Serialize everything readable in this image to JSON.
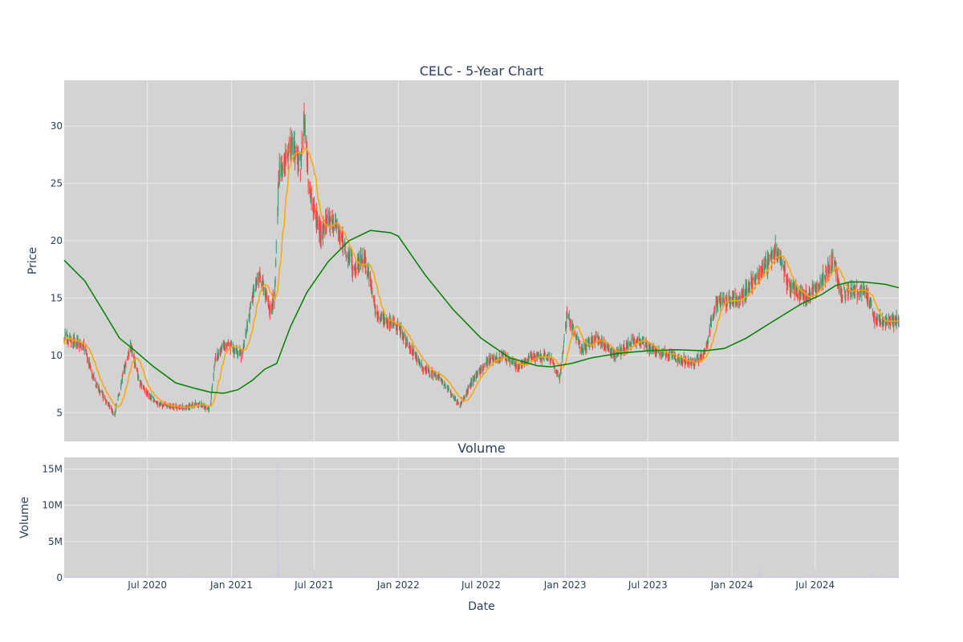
{
  "colors": {
    "plot_bg": "#d3d3d3",
    "grid": "#ebebeb",
    "up": "#3d9970",
    "down": "#ff4136",
    "ma_short": "#ffa500",
    "ma_long": "#008000",
    "volume": "#c8c8e6",
    "text": "#2a3f5f"
  },
  "chart_data": [
    {
      "type": "candlestick",
      "title": "CELC - 5-Year Chart",
      "xlabel": "",
      "ylabel": "Price",
      "xlim": [
        "2020-01-01",
        "2024-12-31"
      ],
      "ylim": [
        2.5,
        34
      ],
      "yticks": [
        5,
        10,
        15,
        20,
        25,
        30
      ],
      "grid": true,
      "series": [
        {
          "kind": "ohlc",
          "anchors": [
            [
              "2020-01-01",
              11.5
            ],
            [
              "2020-02-10",
              11.0
            ],
            [
              "2020-03-10",
              7.5
            ],
            [
              "2020-04-20",
              4.8
            ],
            [
              "2020-05-10",
              8.5
            ],
            [
              "2020-05-25",
              11.0
            ],
            [
              "2020-06-15",
              7.5
            ],
            [
              "2020-07-20",
              5.8
            ],
            [
              "2020-09-15",
              5.4
            ],
            [
              "2020-10-20",
              5.8
            ],
            [
              "2020-11-15",
              5.3
            ],
            [
              "2020-11-25",
              9.5
            ],
            [
              "2020-12-20",
              11.0
            ],
            [
              "2021-01-25",
              10.0
            ],
            [
              "2021-02-15",
              15.0
            ],
            [
              "2021-03-05",
              17.0
            ],
            [
              "2021-03-25",
              14.0
            ],
            [
              "2021-04-05",
              15.0
            ],
            [
              "2021-04-15",
              26.0
            ],
            [
              "2021-05-10",
              28.5
            ],
            [
              "2021-06-01",
              26.5
            ],
            [
              "2021-06-10",
              31.0
            ],
            [
              "2021-06-20",
              24.5
            ],
            [
              "2021-07-15",
              20.5
            ],
            [
              "2021-08-10",
              22.0
            ],
            [
              "2021-09-01",
              20.0
            ],
            [
              "2021-09-25",
              17.5
            ],
            [
              "2021-10-20",
              18.5
            ],
            [
              "2021-11-15",
              13.5
            ],
            [
              "2022-01-01",
              12.5
            ],
            [
              "2022-02-20",
              9.0
            ],
            [
              "2022-04-01",
              8.0
            ],
            [
              "2022-05-15",
              5.6
            ],
            [
              "2022-06-15",
              8.0
            ],
            [
              "2022-07-15",
              9.5
            ],
            [
              "2022-08-20",
              10.0
            ],
            [
              "2022-09-20",
              9.0
            ],
            [
              "2022-10-20",
              10.0
            ],
            [
              "2022-12-01",
              9.8
            ],
            [
              "2022-12-20",
              8.0
            ],
            [
              "2023-01-05",
              13.5
            ],
            [
              "2023-02-05",
              10.5
            ],
            [
              "2023-03-10",
              11.5
            ],
            [
              "2023-04-20",
              10.0
            ],
            [
              "2023-06-10",
              11.5
            ],
            [
              "2023-07-10",
              10.5
            ],
            [
              "2023-08-20",
              10.0
            ],
            [
              "2023-10-10",
              9.2
            ],
            [
              "2023-11-05",
              10.5
            ],
            [
              "2023-11-25",
              14.5
            ],
            [
              "2024-01-20",
              15.0
            ],
            [
              "2024-02-25",
              17.0
            ],
            [
              "2024-03-20",
              18.0
            ],
            [
              "2024-04-05",
              19.5
            ],
            [
              "2024-05-05",
              16.0
            ],
            [
              "2024-06-15",
              15.0
            ],
            [
              "2024-07-15",
              16.5
            ],
            [
              "2024-08-10",
              18.5
            ],
            [
              "2024-08-25",
              15.5
            ],
            [
              "2024-09-25",
              15.5
            ],
            [
              "2024-10-20",
              15.5
            ],
            [
              "2024-11-10",
              13.0
            ],
            [
              "2024-12-31",
              13.0
            ]
          ],
          "noise": 0.055
        },
        {
          "kind": "moving_average",
          "window": 20
        },
        {
          "kind": "moving_average",
          "window": 200,
          "points": [
            [
              "2020-01-01",
              18.3
            ],
            [
              "2020-02-15",
              16.5
            ],
            [
              "2020-04-01",
              13.5
            ],
            [
              "2020-05-01",
              11.5
            ],
            [
              "2020-06-01",
              10.5
            ],
            [
              "2020-07-15",
              9.0
            ],
            [
              "2020-09-01",
              7.6
            ],
            [
              "2020-10-15",
              7.1
            ],
            [
              "2020-11-15",
              6.8
            ],
            [
              "2020-12-15",
              6.7
            ],
            [
              "2021-01-15",
              7.0
            ],
            [
              "2021-02-15",
              7.8
            ],
            [
              "2021-03-15",
              8.8
            ],
            [
              "2021-04-10",
              9.3
            ],
            [
              "2021-05-10",
              12.5
            ],
            [
              "2021-06-15",
              15.5
            ],
            [
              "2021-08-01",
              18.2
            ],
            [
              "2021-09-15",
              20.0
            ],
            [
              "2021-11-01",
              20.9
            ],
            [
              "2021-12-15",
              20.7
            ],
            [
              "2022-01-01",
              20.4
            ],
            [
              "2022-03-01",
              17.0
            ],
            [
              "2022-05-01",
              14.0
            ],
            [
              "2022-07-01",
              11.5
            ],
            [
              "2022-09-01",
              9.8
            ],
            [
              "2022-11-01",
              9.1
            ],
            [
              "2022-12-01",
              9.0
            ],
            [
              "2023-01-15",
              9.3
            ],
            [
              "2023-03-01",
              9.8
            ],
            [
              "2023-05-01",
              10.2
            ],
            [
              "2023-07-01",
              10.4
            ],
            [
              "2023-09-01",
              10.5
            ],
            [
              "2023-11-01",
              10.4
            ],
            [
              "2023-12-15",
              10.6
            ],
            [
              "2024-02-01",
              11.5
            ],
            [
              "2024-04-01",
              13.0
            ],
            [
              "2024-06-01",
              14.5
            ],
            [
              "2024-07-15",
              15.3
            ],
            [
              "2024-08-15",
              16.1
            ],
            [
              "2024-09-15",
              16.4
            ],
            [
              "2024-10-15",
              16.4
            ],
            [
              "2024-12-01",
              16.2
            ],
            [
              "2024-12-31",
              15.9
            ]
          ]
        }
      ]
    },
    {
      "type": "bar",
      "title": "Volume",
      "xlabel": "Date",
      "ylabel": "Volume",
      "ylim": [
        0,
        16600000
      ],
      "yticks": [
        0,
        5000000,
        10000000,
        15000000
      ],
      "ytick_labels": [
        "0",
        "5M",
        "10M",
        "15M"
      ],
      "xticks": [
        "2020-07-01",
        "2021-01-01",
        "2021-07-01",
        "2022-01-01",
        "2022-07-01",
        "2023-01-01",
        "2023-07-01",
        "2024-01-01",
        "2024-07-01"
      ],
      "xtick_labels": [
        "Jul 2020",
        "Jan 2021",
        "Jul 2021",
        "Jan 2022",
        "Jul 2022",
        "Jan 2023",
        "Jul 2023",
        "Jan 2024",
        "Jul 2024"
      ],
      "grid": true,
      "typical_volume": 180000,
      "spikes": [
        [
          "2021-04-12",
          16000000
        ],
        [
          "2021-04-13",
          4500000
        ],
        [
          "2021-04-14",
          1500000
        ],
        [
          "2021-07-01",
          1200000
        ],
        [
          "2024-03-01",
          900000
        ],
        [
          "2024-06-01",
          1500000
        ],
        [
          "2024-07-01",
          1300000
        ],
        [
          "2024-09-01",
          1600000
        ],
        [
          "2024-11-01",
          800000
        ]
      ]
    }
  ]
}
